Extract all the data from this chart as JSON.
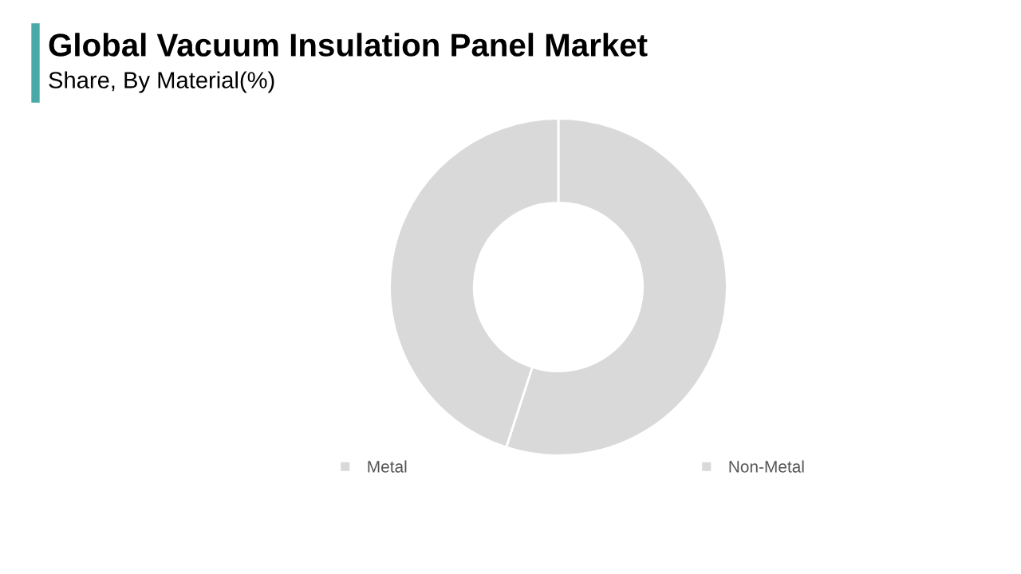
{
  "chart_data": {
    "type": "donut",
    "title": "Global Vacuum Insulation Panel Market",
    "subtitle": "Share, By Material(%)",
    "categories": [
      "Metal",
      "Non-Metal"
    ],
    "values": [
      55,
      45
    ],
    "colors": [
      "#d9d9d9",
      "#d9d9d9"
    ],
    "legend": "bottom"
  }
}
